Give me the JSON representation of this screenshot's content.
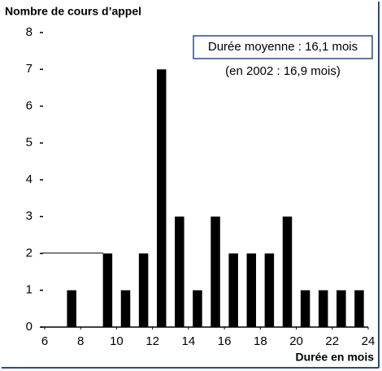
{
  "chart_data": {
    "type": "bar",
    "y_label": "Nombre de cours d’appel",
    "x_label": "Durée en mois",
    "annotation": "Durée moyenne :  16,1 mois",
    "annotation_2": "(en 2002 : 16,9 mois)",
    "x": [
      7.5,
      9.5,
      10.5,
      11.5,
      12.5,
      13.5,
      14.5,
      15.5,
      16.5,
      17.5,
      18.5,
      19.5,
      20.5,
      21.5,
      22.5,
      23.5
    ],
    "values": [
      1,
      2,
      1,
      2,
      7,
      3,
      1,
      3,
      2,
      2,
      2,
      3,
      1,
      1,
      1,
      1
    ],
    "color": "#000000",
    "xlim": [
      6,
      24
    ],
    "xticks": [
      6,
      8,
      10,
      12,
      14,
      16,
      18,
      20,
      22,
      24
    ],
    "ylim": [
      0,
      8
    ],
    "yticks": [
      0,
      1,
      2,
      3,
      4,
      5,
      6,
      7,
      8
    ]
  }
}
